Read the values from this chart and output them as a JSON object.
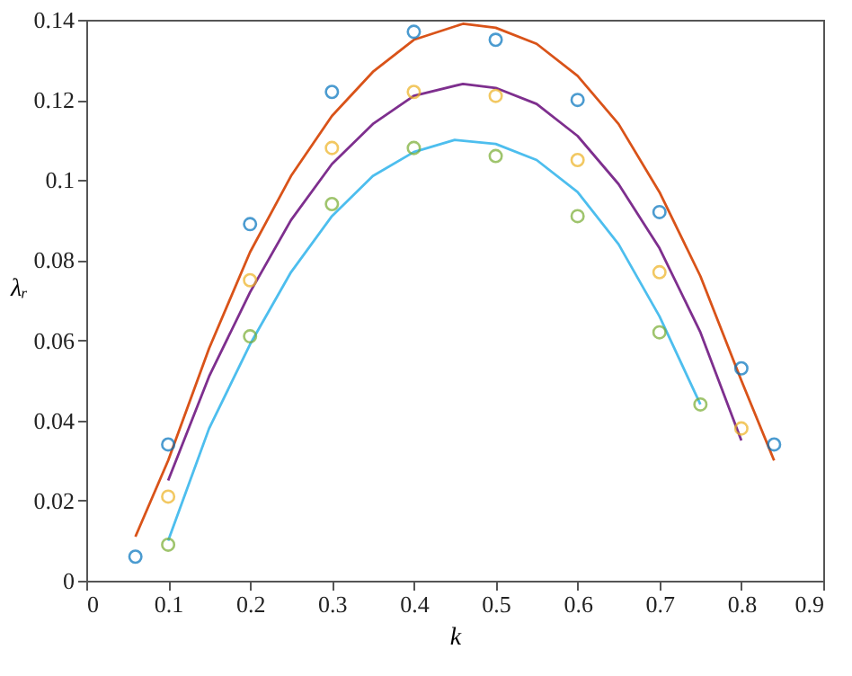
{
  "chart_data": {
    "type": "scatter",
    "xlabel": "k",
    "ylabel": "λᵣ",
    "xlim": [
      0,
      0.9
    ],
    "ylim": [
      0,
      0.14
    ],
    "xticks": [
      0,
      0.1,
      0.2,
      0.3,
      0.4,
      0.5,
      0.6,
      0.7,
      0.8,
      0.9
    ],
    "yticks": [
      0,
      0.02,
      0.04,
      0.06,
      0.08,
      0.1,
      0.12,
      0.14
    ],
    "grid": false,
    "series": [
      {
        "type": "line",
        "color": "#d95319",
        "x": [
          0.06,
          0.1,
          0.15,
          0.2,
          0.25,
          0.3,
          0.35,
          0.4,
          0.46,
          0.5,
          0.55,
          0.6,
          0.65,
          0.7,
          0.75,
          0.8,
          0.84
        ],
        "values": [
          0.011,
          0.03,
          0.058,
          0.082,
          0.101,
          0.116,
          0.127,
          0.135,
          0.139,
          0.138,
          0.134,
          0.126,
          0.114,
          0.097,
          0.076,
          0.05,
          0.03
        ]
      },
      {
        "type": "line",
        "color": "#7e2f8e",
        "x": [
          0.1,
          0.15,
          0.2,
          0.25,
          0.3,
          0.35,
          0.4,
          0.46,
          0.5,
          0.55,
          0.6,
          0.65,
          0.7,
          0.75,
          0.8
        ],
        "values": [
          0.025,
          0.051,
          0.072,
          0.09,
          0.104,
          0.114,
          0.121,
          0.124,
          0.123,
          0.119,
          0.111,
          0.099,
          0.083,
          0.062,
          0.035
        ]
      },
      {
        "type": "line",
        "color": "#4dbeee",
        "x": [
          0.1,
          0.15,
          0.2,
          0.25,
          0.3,
          0.35,
          0.4,
          0.45,
          0.5,
          0.55,
          0.6,
          0.65,
          0.7,
          0.75
        ],
        "values": [
          0.01,
          0.038,
          0.059,
          0.077,
          0.091,
          0.101,
          0.107,
          0.11,
          0.109,
          0.105,
          0.097,
          0.084,
          0.066,
          0.044
        ]
      },
      {
        "marker": "circle",
        "color": "#0072bd",
        "x": [
          0.06,
          0.1,
          0.2,
          0.3,
          0.4,
          0.5,
          0.6,
          0.7,
          0.8,
          0.84
        ],
        "values": [
          0.006,
          0.034,
          0.089,
          0.122,
          0.137,
          0.135,
          0.12,
          0.092,
          0.053,
          0.034
        ]
      },
      {
        "marker": "circle",
        "color": "#edb120",
        "x": [
          0.1,
          0.2,
          0.3,
          0.4,
          0.5,
          0.6,
          0.7,
          0.8
        ],
        "values": [
          0.021,
          0.075,
          0.108,
          0.122,
          0.121,
          0.105,
          0.077,
          0.038
        ]
      },
      {
        "marker": "circle",
        "color": "#77ac30",
        "x": [
          0.1,
          0.2,
          0.3,
          0.4,
          0.5,
          0.6,
          0.7,
          0.75
        ],
        "values": [
          0.009,
          0.061,
          0.094,
          0.108,
          0.106,
          0.091,
          0.062,
          0.044
        ]
      }
    ]
  }
}
